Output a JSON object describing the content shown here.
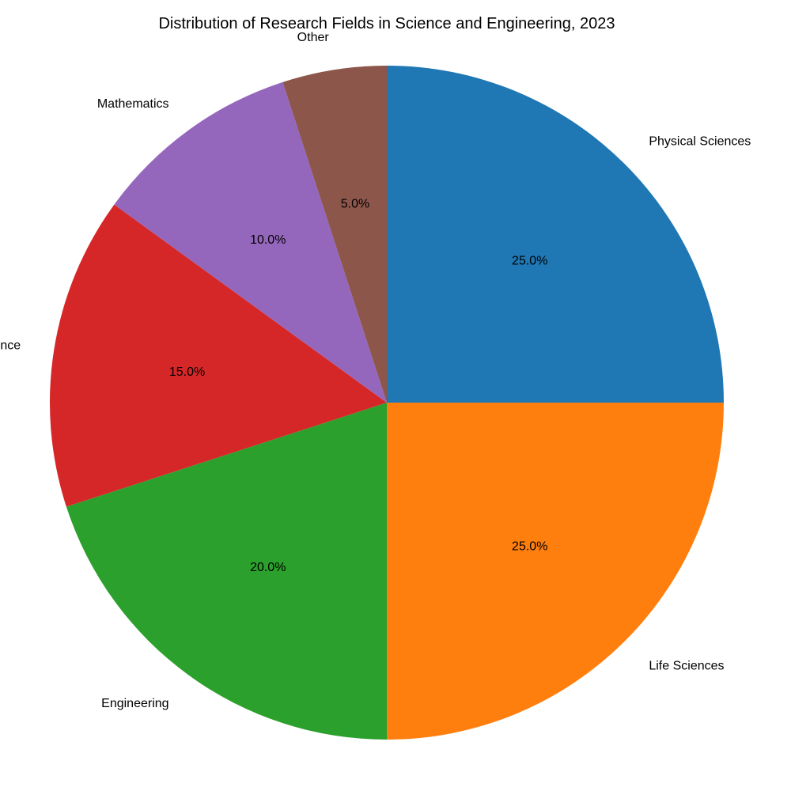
{
  "chart_data": {
    "type": "pie",
    "title": "Distribution of Research Fields in Science and Engineering, 2023",
    "labels": [
      "Physical Sciences",
      "Life Sciences",
      "Engineering",
      "Computer Science",
      "Mathematics",
      "Other"
    ],
    "values": [
      25,
      25,
      20,
      15,
      10,
      5
    ],
    "percent_labels": [
      "25.0%",
      "25.0%",
      "20.0%",
      "15.0%",
      "10.0%",
      "5.0%"
    ],
    "colors": [
      "#1f77b4",
      "#ff7f0e",
      "#2ca02c",
      "#d62728",
      "#9467bd",
      "#8c564b"
    ],
    "start_angle_deg": 90,
    "direction": "clockwise",
    "legend": "none"
  }
}
